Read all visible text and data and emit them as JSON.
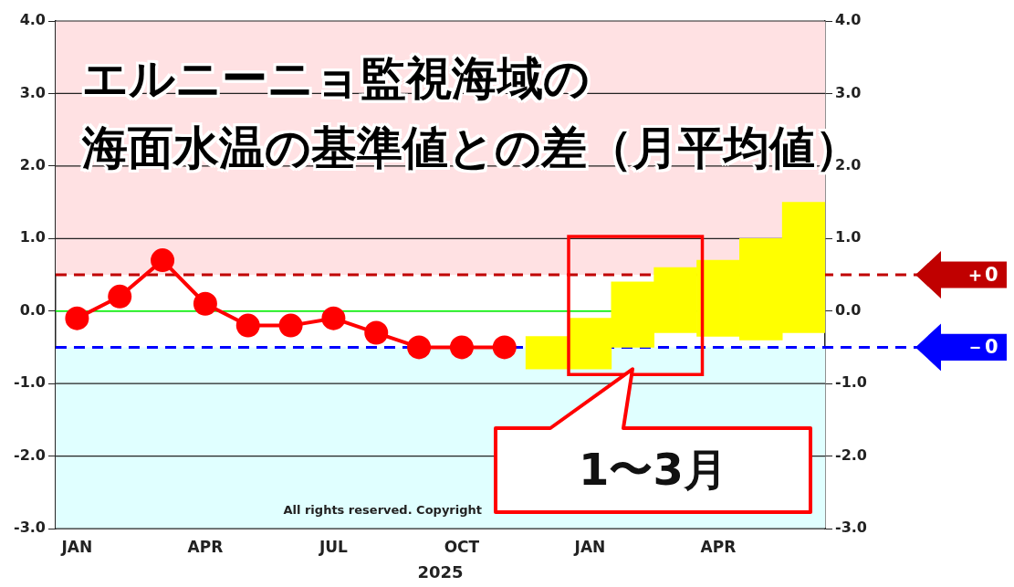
{
  "chart_data": {
    "type": "line",
    "title": "エルニーニョ監視海域の",
    "subtitle": "海面水温の基準値との差（月平均値）",
    "xlabel": "2025",
    "categories": [
      "JAN",
      null,
      null,
      "APR",
      null,
      null,
      "JUL",
      null,
      null,
      "OCT",
      null,
      null,
      "JAN",
      null,
      null,
      "APR",
      null,
      null
    ],
    "series": [
      {
        "color": "#ff0000",
        "marker": "circle",
        "values": [
          -0.1,
          0.2,
          0.7,
          0.1,
          -0.2,
          -0.2,
          -0.1,
          -0.3,
          -0.5,
          -0.5,
          -0.5,
          null,
          null,
          null,
          null,
          null,
          null,
          null
        ]
      },
      {
        "type": "bar",
        "color": "#ffff00",
        "base": [
          null,
          null,
          null,
          null,
          null,
          null,
          null,
          null,
          null,
          null,
          null,
          -0.8,
          -0.8,
          -0.5,
          -0.3,
          -0.35,
          -0.4,
          -0.3
        ],
        "values": [
          null,
          null,
          null,
          null,
          null,
          null,
          null,
          null,
          null,
          null,
          null,
          0.45,
          0.7,
          0.9,
          0.9,
          1.05,
          1.4,
          1.8
        ]
      }
    ],
    "ylim": [
      -3,
      4
    ],
    "yticks": [
      {
        "value": -3,
        "label": "-3.0"
      },
      {
        "value": -2,
        "label": "-2.0"
      },
      {
        "value": -1,
        "label": "-1.0"
      },
      {
        "value": 0,
        "label": "0.0"
      },
      {
        "value": 1,
        "label": "1.0"
      },
      {
        "value": 2,
        "label": "2.0"
      },
      {
        "value": 3,
        "label": "3.0"
      },
      {
        "value": 4,
        "label": "4.0"
      }
    ],
    "y2lim": [
      -3,
      4
    ],
    "y2ticks": [
      {
        "value": -3,
        "label": "-3.0"
      },
      {
        "value": -2,
        "label": "-2.0"
      },
      {
        "value": -1,
        "label": "-1.0"
      },
      {
        "value": 0,
        "label": "0.0"
      },
      {
        "value": 1,
        "label": "1.0"
      },
      {
        "value": 2,
        "label": "2.0"
      },
      {
        "value": 3,
        "label": "3.0"
      },
      {
        "value": 4,
        "label": "4.0"
      }
    ],
    "grid": "y",
    "legend": false,
    "bands": [
      {
        "axis": "y",
        "from": 0.5,
        "to": 4,
        "color": "#ffe1e3"
      },
      {
        "axis": "y",
        "from": -3,
        "to": -0.5,
        "color": "#e0ffff"
      }
    ],
    "ref_lines": [
      {
        "axis": "y",
        "value": 0.5,
        "label": "＋0",
        "color": "#c00000",
        "line_style": "dashed"
      },
      {
        "axis": "y",
        "value": -0.5,
        "label": "－0",
        "color": "#0000ff",
        "line_style": "dashed"
      },
      {
        "axis": "y",
        "value": 0,
        "color": "#00ff00",
        "line_style": "solid"
      }
    ],
    "annotations": [
      "All rights reserved. Copyright",
      "1〜3月"
    ]
  }
}
